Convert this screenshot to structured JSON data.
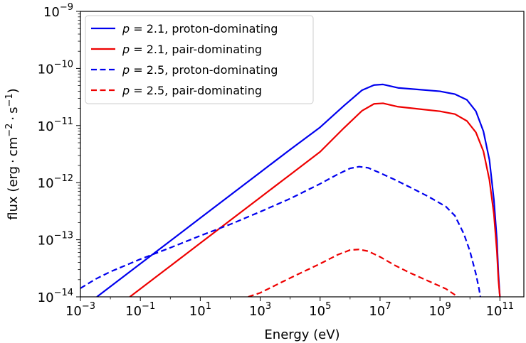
{
  "chart_data": {
    "type": "line",
    "xlabel": "Energy (eV)",
    "ylabel_parts": {
      "prefix": "flux (erg",
      "dot": "·",
      "cm": "cm",
      "cm_exp": "−2",
      "s": "s",
      "s_exp": "−1",
      "suffix": ")"
    },
    "xscale": "log",
    "yscale": "log",
    "xlim_log10": [
      -3,
      11.8
    ],
    "ylim_log10": [
      -14,
      -9
    ],
    "x_ticks": [
      {
        "base": "10",
        "exp": "−3",
        "log10": -3
      },
      {
        "base": "10",
        "exp": "−1",
        "log10": -1
      },
      {
        "base": "10",
        "exp": "1",
        "log10": 1
      },
      {
        "base": "10",
        "exp": "3",
        "log10": 3
      },
      {
        "base": "10",
        "exp": "5",
        "log10": 5
      },
      {
        "base": "10",
        "exp": "7",
        "log10": 7
      },
      {
        "base": "10",
        "exp": "9",
        "log10": 9
      },
      {
        "base": "10",
        "exp": "11",
        "log10": 11
      }
    ],
    "y_ticks": [
      {
        "base": "10",
        "exp": "−14",
        "log10": -14
      },
      {
        "base": "10",
        "exp": "−13",
        "log10": -13
      },
      {
        "base": "10",
        "exp": "−12",
        "log10": -12
      },
      {
        "base": "10",
        "exp": "−11",
        "log10": -11
      },
      {
        "base": "10",
        "exp": "−10",
        "log10": -10
      },
      {
        "base": "10",
        "exp": "−9",
        "log10": -9
      }
    ],
    "legend_position": "upper-left",
    "series": [
      {
        "name": "p = 2.1, proton-dominating",
        "label_var": "p",
        "label_eq": " = 2.1, proton-dominating",
        "color": "#0000ee",
        "dash": "solid",
        "points_log10": [
          [
            -2.45,
            -14.0
          ],
          [
            -1,
            -13.42
          ],
          [
            0,
            -13.02
          ],
          [
            1,
            -12.62
          ],
          [
            2,
            -12.22
          ],
          [
            3,
            -11.82
          ],
          [
            4,
            -11.42
          ],
          [
            5,
            -11.03
          ],
          [
            5.8,
            -10.65
          ],
          [
            6.4,
            -10.38
          ],
          [
            6.8,
            -10.29
          ],
          [
            7.1,
            -10.28
          ],
          [
            7.6,
            -10.34
          ],
          [
            8.3,
            -10.37
          ],
          [
            9,
            -10.4
          ],
          [
            9.5,
            -10.45
          ],
          [
            9.9,
            -10.55
          ],
          [
            10.2,
            -10.75
          ],
          [
            10.45,
            -11.1
          ],
          [
            10.65,
            -11.6
          ],
          [
            10.8,
            -12.3
          ],
          [
            10.9,
            -13.0
          ],
          [
            10.95,
            -13.6
          ],
          [
            11.0,
            -14.0
          ]
        ]
      },
      {
        "name": "p = 2.1, pair-dominating",
        "label_var": "p",
        "label_eq": " = 2.1, pair-dominating",
        "color": "#ee0000",
        "dash": "solid",
        "points_log10": [
          [
            -1.35,
            -14.0
          ],
          [
            -1,
            -13.86
          ],
          [
            0,
            -13.46
          ],
          [
            1,
            -13.06
          ],
          [
            2,
            -12.66
          ],
          [
            3,
            -12.26
          ],
          [
            4,
            -11.86
          ],
          [
            5,
            -11.46
          ],
          [
            5.8,
            -11.04
          ],
          [
            6.4,
            -10.74
          ],
          [
            6.8,
            -10.62
          ],
          [
            7.1,
            -10.61
          ],
          [
            7.6,
            -10.67
          ],
          [
            8.3,
            -10.71
          ],
          [
            9,
            -10.75
          ],
          [
            9.5,
            -10.8
          ],
          [
            9.9,
            -10.92
          ],
          [
            10.2,
            -11.12
          ],
          [
            10.45,
            -11.45
          ],
          [
            10.65,
            -11.95
          ],
          [
            10.8,
            -12.55
          ],
          [
            10.9,
            -13.2
          ],
          [
            10.95,
            -13.7
          ],
          [
            11.0,
            -14.0
          ]
        ]
      },
      {
        "name": "p = 2.5, proton-dominating",
        "label_var": "p",
        "label_eq": " = 2.5, proton-dominating",
        "color": "#0000ee",
        "dash": "dashed",
        "points_log10": [
          [
            -3,
            -13.85
          ],
          [
            -2.5,
            -13.69
          ],
          [
            -2,
            -13.56
          ],
          [
            -1,
            -13.34
          ],
          [
            0,
            -13.14
          ],
          [
            1,
            -12.93
          ],
          [
            2,
            -12.73
          ],
          [
            3,
            -12.51
          ],
          [
            4,
            -12.28
          ],
          [
            5,
            -12.02
          ],
          [
            5.6,
            -11.85
          ],
          [
            6,
            -11.75
          ],
          [
            6.3,
            -11.72
          ],
          [
            6.6,
            -11.74
          ],
          [
            7,
            -11.83
          ],
          [
            7.5,
            -11.95
          ],
          [
            8,
            -12.08
          ],
          [
            8.6,
            -12.24
          ],
          [
            9.2,
            -12.42
          ],
          [
            9.5,
            -12.58
          ],
          [
            9.8,
            -12.9
          ],
          [
            10.0,
            -13.2
          ],
          [
            10.2,
            -13.6
          ],
          [
            10.3,
            -13.85
          ],
          [
            10.35,
            -14.0
          ]
        ]
      },
      {
        "name": "p = 2.5, pair-dominating",
        "label_var": "p",
        "label_eq": " = 2.5, pair-dominating",
        "color": "#ee0000",
        "dash": "dashed",
        "points_log10": [
          [
            2.6,
            -14.0
          ],
          [
            3,
            -13.93
          ],
          [
            4,
            -13.67
          ],
          [
            5,
            -13.42
          ],
          [
            5.6,
            -13.26
          ],
          [
            6,
            -13.18
          ],
          [
            6.3,
            -13.17
          ],
          [
            6.6,
            -13.2
          ],
          [
            7,
            -13.3
          ],
          [
            7.5,
            -13.45
          ],
          [
            8,
            -13.58
          ],
          [
            8.6,
            -13.72
          ],
          [
            9.2,
            -13.86
          ],
          [
            9.6,
            -14.0
          ]
        ]
      }
    ]
  }
}
